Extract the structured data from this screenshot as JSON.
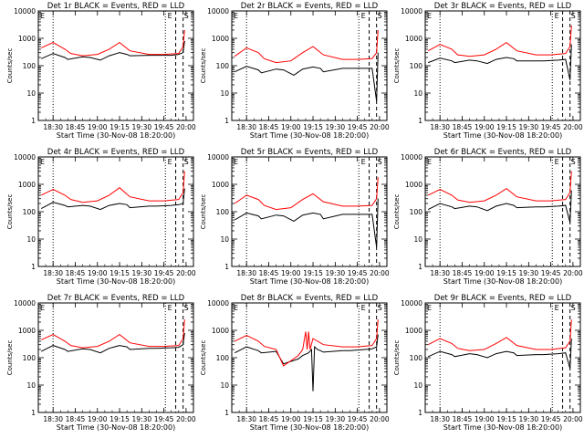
{
  "figure": {
    "xlabel": "Start Time (30-Nov-08 18:20:00)",
    "ylabel": "Counts/sec",
    "xticks": [
      "18:30",
      "18:45",
      "19:00",
      "19:15",
      "19:30",
      "19:45",
      "20:00"
    ],
    "yticks": [
      "1",
      "10",
      "100",
      "1000",
      "10000"
    ],
    "series_colors": {
      "events": "#000000",
      "lld": "#ff0000"
    },
    "marker_labels": {
      "E": "E",
      "S": "S"
    }
  },
  "chart_data": [
    {
      "type": "line",
      "title": "Det 1r BLACK = Events, RED = LLD",
      "ylim": [
        1,
        10000
      ],
      "yscale": "log",
      "xlim": [
        "18:20",
        "20:05"
      ],
      "ylabel": "Counts/sec",
      "xlabel": "Start Time (30-Nov-08 18:20:00)",
      "series": [
        {
          "name": "Events",
          "color": "#000000",
          "x": [
            "18:22",
            "18:30",
            "18:38",
            "18:40",
            "18:50",
            "18:55",
            "19:02",
            "19:08",
            "19:15",
            "19:20",
            "19:22",
            "19:35",
            "19:40",
            "19:50",
            "19:55",
            "19:58",
            "19:59"
          ],
          "y": [
            180,
            280,
            200,
            170,
            210,
            200,
            160,
            230,
            300,
            260,
            230,
            240,
            240,
            240,
            260,
            300,
            800
          ]
        },
        {
          "name": "LLD",
          "color": "#ff0000",
          "x": [
            "18:22",
            "18:30",
            "18:38",
            "18:42",
            "18:50",
            "19:00",
            "19:08",
            "19:15",
            "19:22",
            "19:35",
            "19:45",
            "19:55",
            "19:58",
            "19:59"
          ],
          "y": [
            450,
            700,
            400,
            280,
            230,
            260,
            400,
            700,
            350,
            260,
            260,
            280,
            500,
            2000
          ]
        }
      ],
      "vlines_dotted": [
        "18:30",
        "19:46"
      ],
      "vlines_dashed": [
        "19:53",
        "19:58"
      ]
    },
    {
      "type": "line",
      "title": "Det 2r BLACK = Events, RED = LLD",
      "ylim": [
        1,
        10000
      ],
      "yscale": "log",
      "xlim": [
        "18:20",
        "20:05"
      ],
      "ylabel": "Counts/sec",
      "xlabel": "Start Time (30-Nov-08 18:20:00)",
      "series": [
        {
          "name": "Events",
          "color": "#000000",
          "x": [
            "18:22",
            "18:30",
            "18:38",
            "18:40",
            "18:50",
            "18:55",
            "19:02",
            "19:08",
            "19:15",
            "19:20",
            "19:22",
            "19:35",
            "19:40",
            "19:50",
            "19:55",
            "19:58",
            "19:59"
          ],
          "y": [
            60,
            95,
            70,
            55,
            75,
            70,
            45,
            75,
            90,
            80,
            60,
            80,
            80,
            80,
            80,
            5,
            300
          ]
        },
        {
          "name": "LLD",
          "color": "#ff0000",
          "x": [
            "18:22",
            "18:30",
            "18:38",
            "18:42",
            "18:50",
            "19:00",
            "19:08",
            "19:15",
            "19:22",
            "19:35",
            "19:45",
            "19:55",
            "19:58",
            "19:59"
          ],
          "y": [
            220,
            450,
            300,
            180,
            130,
            150,
            300,
            500,
            250,
            170,
            170,
            180,
            300,
            2000
          ]
        }
      ],
      "vlines_dotted": [
        "18:30",
        "19:46"
      ],
      "vlines_dashed": [
        "19:53",
        "19:58"
      ]
    },
    {
      "type": "line",
      "title": "Det 3r BLACK = Events, RED = LLD",
      "ylim": [
        1,
        10000
      ],
      "yscale": "log",
      "xlim": [
        "18:20",
        "20:05"
      ],
      "ylabel": "Counts/sec",
      "xlabel": "Start Time (30-Nov-08 18:20:00)",
      "series": [
        {
          "name": "Events",
          "color": "#000000",
          "x": [
            "18:22",
            "18:30",
            "18:38",
            "18:40",
            "18:50",
            "18:55",
            "19:02",
            "19:08",
            "19:15",
            "19:20",
            "19:22",
            "19:35",
            "19:40",
            "19:50",
            "19:55",
            "19:58",
            "19:59"
          ],
          "y": [
            130,
            190,
            150,
            130,
            160,
            150,
            120,
            170,
            200,
            180,
            150,
            150,
            150,
            160,
            170,
            30,
            600
          ]
        },
        {
          "name": "LLD",
          "color": "#ff0000",
          "x": [
            "18:22",
            "18:30",
            "18:38",
            "18:42",
            "18:50",
            "19:00",
            "19:08",
            "19:15",
            "19:22",
            "19:35",
            "19:45",
            "19:55",
            "19:58",
            "19:59"
          ],
          "y": [
            350,
            600,
            400,
            250,
            220,
            250,
            400,
            700,
            350,
            250,
            250,
            280,
            500,
            3000
          ]
        }
      ],
      "vlines_dotted": [
        "18:30",
        "19:46"
      ],
      "vlines_dashed": [
        "19:53",
        "19:58"
      ]
    },
    {
      "type": "line",
      "title": "Det 4r BLACK = Events, RED = LLD",
      "ylim": [
        1,
        10000
      ],
      "yscale": "log",
      "xlim": [
        "18:20",
        "20:05"
      ],
      "ylabel": "Counts/sec",
      "xlabel": "Start Time (30-Nov-08 18:20:00)",
      "series": [
        {
          "name": "Events",
          "color": "#000000",
          "x": [
            "18:22",
            "18:30",
            "18:38",
            "18:40",
            "18:50",
            "18:55",
            "19:02",
            "19:08",
            "19:15",
            "19:20",
            "19:22",
            "19:35",
            "19:40",
            "19:50",
            "19:55",
            "19:58",
            "19:59"
          ],
          "y": [
            130,
            220,
            170,
            150,
            170,
            160,
            120,
            170,
            200,
            180,
            140,
            160,
            160,
            170,
            180,
            200,
            700
          ]
        },
        {
          "name": "LLD",
          "color": "#ff0000",
          "x": [
            "18:22",
            "18:30",
            "18:38",
            "18:42",
            "18:50",
            "19:00",
            "19:08",
            "19:15",
            "19:22",
            "19:35",
            "19:45",
            "19:55",
            "19:58",
            "19:59"
          ],
          "y": [
            400,
            650,
            400,
            280,
            220,
            250,
            400,
            750,
            350,
            250,
            250,
            280,
            500,
            3000
          ]
        }
      ],
      "vlines_dotted": [
        "18:30",
        "19:46"
      ],
      "vlines_dashed": [
        "19:53",
        "19:58"
      ]
    },
    {
      "type": "line",
      "title": "Det 5r BLACK = Events, RED = LLD",
      "ylim": [
        1,
        10000
      ],
      "yscale": "log",
      "xlim": [
        "18:20",
        "20:05"
      ],
      "ylabel": "Counts/sec",
      "xlabel": "Start Time (30-Nov-08 18:20:00)",
      "series": [
        {
          "name": "Events",
          "color": "#000000",
          "x": [
            "18:22",
            "18:30",
            "18:38",
            "18:40",
            "18:50",
            "18:55",
            "19:02",
            "19:08",
            "19:15",
            "19:20",
            "19:22",
            "19:35",
            "19:40",
            "19:50",
            "19:55",
            "19:58",
            "19:59"
          ],
          "y": [
            50,
            90,
            70,
            55,
            75,
            70,
            45,
            75,
            90,
            80,
            55,
            80,
            80,
            80,
            80,
            5,
            300
          ]
        },
        {
          "name": "LLD",
          "color": "#ff0000",
          "x": [
            "18:22",
            "18:30",
            "18:38",
            "18:42",
            "18:50",
            "19:00",
            "19:08",
            "19:15",
            "19:22",
            "19:35",
            "19:45",
            "19:55",
            "19:58",
            "19:59"
          ],
          "y": [
            200,
            400,
            280,
            170,
            120,
            140,
            280,
            450,
            230,
            160,
            160,
            170,
            300,
            1800
          ]
        }
      ],
      "vlines_dotted": [
        "18:30",
        "19:46"
      ],
      "vlines_dashed": [
        "19:53",
        "19:58"
      ]
    },
    {
      "type": "line",
      "title": "Det 6r BLACK = Events, RED = LLD",
      "ylim": [
        1,
        10000
      ],
      "yscale": "log",
      "xlim": [
        "18:20",
        "20:05"
      ],
      "ylabel": "Counts/sec",
      "xlabel": "Start Time (30-Nov-08 18:20:00)",
      "series": [
        {
          "name": "Events",
          "color": "#000000",
          "x": [
            "18:22",
            "18:30",
            "18:38",
            "18:40",
            "18:50",
            "18:55",
            "19:02",
            "19:08",
            "19:15",
            "19:20",
            "19:22",
            "19:35",
            "19:40",
            "19:50",
            "19:55",
            "19:58",
            "19:59"
          ],
          "y": [
            120,
            200,
            150,
            130,
            160,
            150,
            110,
            160,
            200,
            170,
            140,
            150,
            150,
            160,
            170,
            40,
            600
          ]
        },
        {
          "name": "LLD",
          "color": "#ff0000",
          "x": [
            "18:22",
            "18:30",
            "18:38",
            "18:42",
            "18:50",
            "19:00",
            "19:08",
            "19:15",
            "19:22",
            "19:35",
            "19:45",
            "19:55",
            "19:58",
            "19:59"
          ],
          "y": [
            400,
            650,
            400,
            270,
            220,
            250,
            400,
            700,
            350,
            250,
            250,
            280,
            500,
            3000
          ]
        }
      ],
      "vlines_dotted": [
        "18:30",
        "19:46"
      ],
      "vlines_dashed": [
        "19:53",
        "19:58"
      ]
    },
    {
      "type": "line",
      "title": "Det 7r BLACK = Events, RED = LLD",
      "ylim": [
        1,
        10000
      ],
      "yscale": "log",
      "xlim": [
        "18:20",
        "20:05"
      ],
      "ylabel": "Counts/sec",
      "xlabel": "Start Time (30-Nov-08 18:20:00)",
      "series": [
        {
          "name": "Events",
          "color": "#000000",
          "x": [
            "18:22",
            "18:30",
            "18:38",
            "18:40",
            "18:50",
            "18:55",
            "19:02",
            "19:08",
            "19:15",
            "19:20",
            "19:22",
            "19:35",
            "19:40",
            "19:50",
            "19:55",
            "19:58",
            "19:59"
          ],
          "y": [
            170,
            280,
            200,
            170,
            210,
            200,
            150,
            220,
            280,
            250,
            200,
            220,
            220,
            230,
            240,
            300,
            800
          ]
        },
        {
          "name": "LLD",
          "color": "#ff0000",
          "x": [
            "18:22",
            "18:30",
            "18:38",
            "18:42",
            "18:50",
            "19:00",
            "19:08",
            "19:15",
            "19:22",
            "19:35",
            "19:45",
            "19:55",
            "19:58",
            "19:59"
          ],
          "y": [
            450,
            700,
            400,
            280,
            230,
            260,
            400,
            700,
            350,
            260,
            260,
            280,
            500,
            2500
          ]
        }
      ],
      "vlines_dotted": [
        "18:30",
        "19:46"
      ],
      "vlines_dashed": [
        "19:53",
        "19:58"
      ]
    },
    {
      "type": "line",
      "title": "Det 8r BLACK = Events, RED = LLD",
      "ylim": [
        1,
        10000
      ],
      "yscale": "log",
      "xlim": [
        "18:20",
        "20:05"
      ],
      "ylabel": "Counts/sec",
      "xlabel": "Start Time (30-Nov-08 18:20:00)",
      "series": [
        {
          "name": "Events",
          "color": "#000000",
          "x": [
            "18:22",
            "18:30",
            "18:38",
            "18:40",
            "18:50",
            "18:55",
            "19:05",
            "19:08",
            "19:12",
            "19:14",
            "19:15",
            "19:16",
            "19:18",
            "19:20",
            "19:22",
            "19:35",
            "19:40",
            "19:50",
            "19:55",
            "19:58",
            "19:59"
          ],
          "y": [
            150,
            250,
            180,
            150,
            170,
            60,
            90,
            120,
            150,
            200,
            6,
            250,
            200,
            180,
            160,
            180,
            180,
            200,
            210,
            250,
            700
          ]
        },
        {
          "name": "LLD",
          "color": "#ff0000",
          "x": [
            "18:22",
            "18:30",
            "18:38",
            "18:42",
            "18:50",
            "18:55",
            "19:05",
            "19:08",
            "19:10",
            "19:11",
            "19:12",
            "19:13",
            "19:15",
            "19:22",
            "19:35",
            "19:45",
            "19:55",
            "19:58",
            "19:59"
          ],
          "y": [
            400,
            650,
            400,
            260,
            200,
            50,
            120,
            200,
            900,
            200,
            900,
            200,
            500,
            300,
            250,
            250,
            280,
            500,
            2500
          ]
        }
      ],
      "vlines_dotted": [
        "18:30",
        "19:46"
      ],
      "vlines_dashed": [
        "19:53",
        "19:58"
      ]
    },
    {
      "type": "line",
      "title": "Det 9r BLACK = Events, RED = LLD",
      "ylim": [
        1,
        10000
      ],
      "yscale": "log",
      "xlim": [
        "18:20",
        "20:05"
      ],
      "ylabel": "Counts/sec",
      "xlabel": "Start Time (30-Nov-08 18:20:00)",
      "series": [
        {
          "name": "Events",
          "color": "#000000",
          "x": [
            "18:22",
            "18:30",
            "18:38",
            "18:40",
            "18:50",
            "18:55",
            "19:02",
            "19:08",
            "19:15",
            "19:20",
            "19:22",
            "19:35",
            "19:40",
            "19:50",
            "19:55",
            "19:58",
            "19:59"
          ],
          "y": [
            110,
            170,
            130,
            110,
            140,
            130,
            100,
            140,
            170,
            150,
            120,
            130,
            130,
            140,
            150,
            40,
            500
          ]
        },
        {
          "name": "LLD",
          "color": "#ff0000",
          "x": [
            "18:22",
            "18:30",
            "18:38",
            "18:42",
            "18:50",
            "19:00",
            "19:08",
            "19:15",
            "19:22",
            "19:35",
            "19:45",
            "19:55",
            "19:58",
            "19:59"
          ],
          "y": [
            300,
            500,
            330,
            220,
            180,
            200,
            330,
            550,
            280,
            200,
            200,
            230,
            400,
            2500
          ]
        }
      ],
      "vlines_dotted": [
        "18:30",
        "19:46"
      ],
      "vlines_dashed": [
        "19:53",
        "19:58"
      ]
    }
  ]
}
